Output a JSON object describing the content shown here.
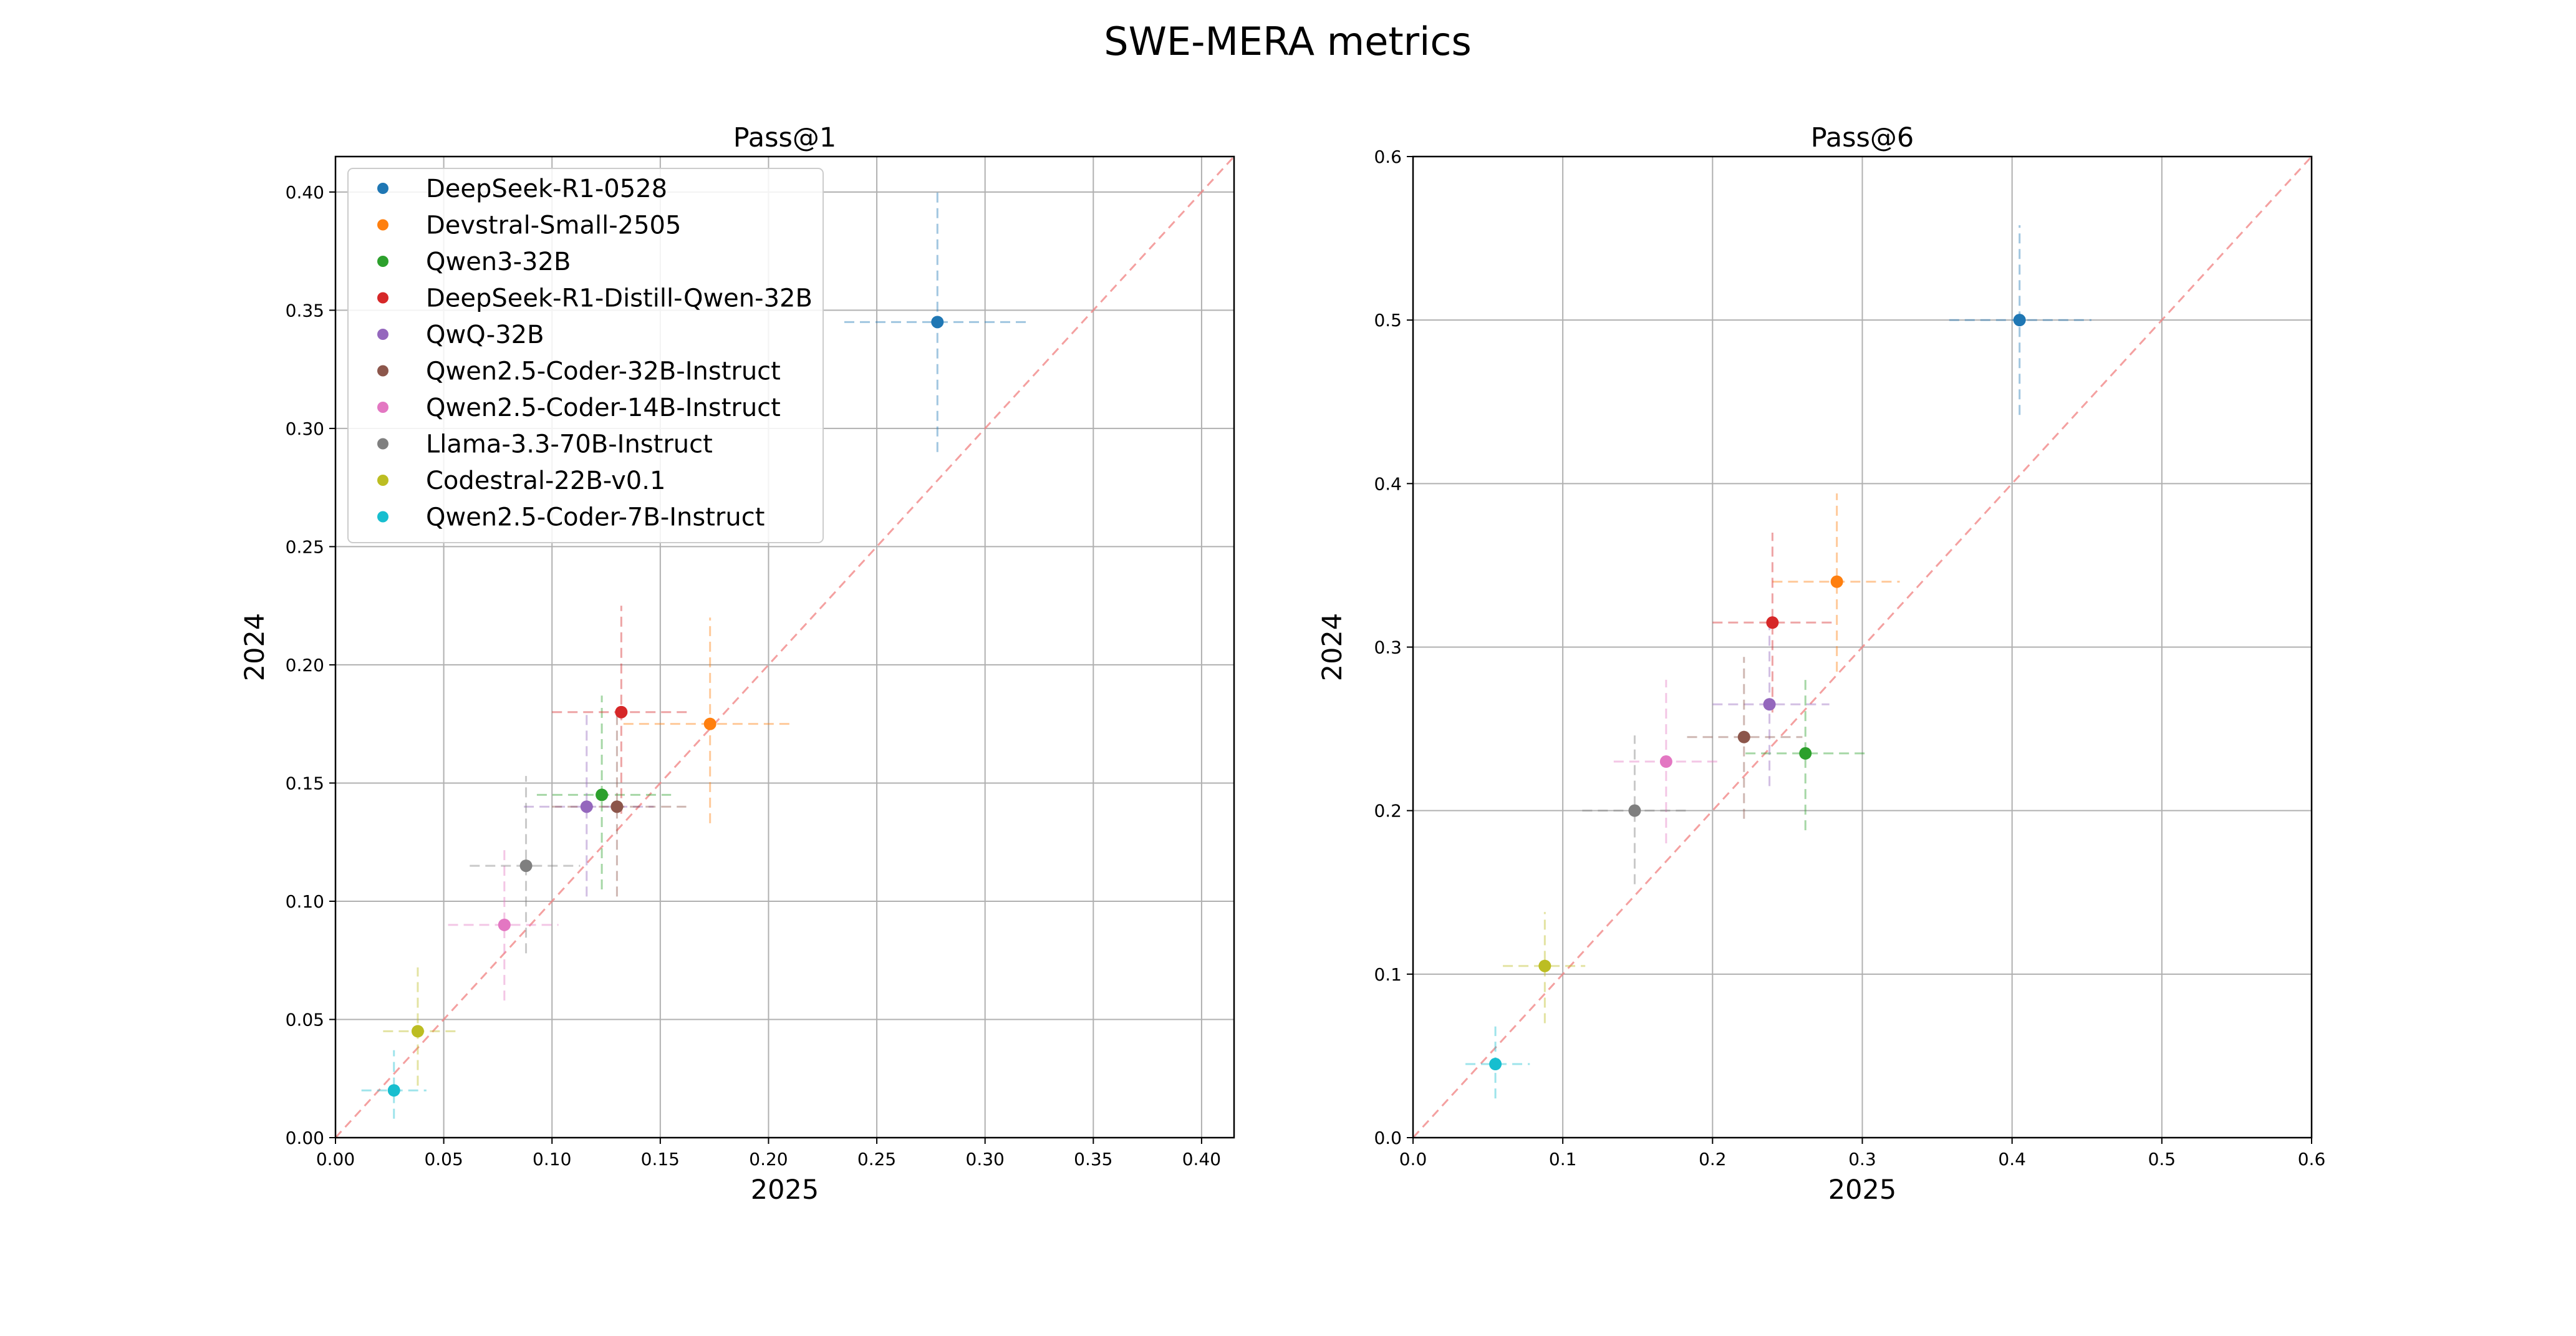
{
  "figure": {
    "title": "SWE-MERA metrics"
  },
  "legend": {
    "placement": "upper-left",
    "entries": [
      {
        "name": "DeepSeek-R1-0528",
        "color": "#1f77b4"
      },
      {
        "name": "Devstral-Small-2505",
        "color": "#ff7f0e"
      },
      {
        "name": "Qwen3-32B",
        "color": "#2ca02c"
      },
      {
        "name": "DeepSeek-R1-Distill-Qwen-32B",
        "color": "#d62728"
      },
      {
        "name": "QwQ-32B",
        "color": "#9467bd"
      },
      {
        "name": "Qwen2.5-Coder-32B-Instruct",
        "color": "#8c564b"
      },
      {
        "name": "Qwen2.5-Coder-14B-Instruct",
        "color": "#e377c2"
      },
      {
        "name": "Llama-3.3-70B-Instruct",
        "color": "#7f7f7f"
      },
      {
        "name": "Codestral-22B-v0.1",
        "color": "#bcbd22"
      },
      {
        "name": "Qwen2.5-Coder-7B-Instruct",
        "color": "#17becf"
      }
    ]
  },
  "chart_data": [
    {
      "type": "scatter",
      "title": "Pass@1",
      "xlabel": "2025",
      "ylabel": "2024",
      "xlim": [
        0,
        0.415
      ],
      "ylim": [
        0,
        0.415
      ],
      "xticks": [
        0,
        0.05,
        0.1,
        0.15,
        0.2,
        0.25,
        0.3,
        0.35,
        0.4
      ],
      "yticks": [
        0,
        0.05,
        0.1,
        0.15,
        0.2,
        0.25,
        0.3,
        0.35,
        0.4
      ],
      "xtick_labels": [
        "0.00",
        "0.05",
        "0.10",
        "0.15",
        "0.20",
        "0.25",
        "0.30",
        "0.35",
        "0.40"
      ],
      "ytick_labels": [
        "0.00",
        "0.05",
        "0.10",
        "0.15",
        "0.20",
        "0.25",
        "0.30",
        "0.35",
        "0.40"
      ],
      "grid": true,
      "diagonal": true,
      "diagonal_color": "#f08080",
      "error_bars": "dashed",
      "points": [
        {
          "x": 0.278,
          "y": 0.345,
          "x_err": [
            0.235,
            0.32
          ],
          "y_err": [
            0.29,
            0.4
          ]
        },
        {
          "x": 0.173,
          "y": 0.175,
          "x_err": [
            0.133,
            0.21
          ],
          "y_err": [
            0.133,
            0.22
          ]
        },
        {
          "x": 0.123,
          "y": 0.145,
          "x_err": [
            0.093,
            0.155
          ],
          "y_err": [
            0.105,
            0.187
          ]
        },
        {
          "x": 0.132,
          "y": 0.18,
          "x_err": [
            0.1,
            0.163
          ],
          "y_err": [
            0.137,
            0.225
          ]
        },
        {
          "x": 0.116,
          "y": 0.14,
          "x_err": [
            0.087,
            0.147
          ],
          "y_err": [
            0.102,
            0.18
          ]
        },
        {
          "x": 0.13,
          "y": 0.14,
          "x_err": [
            0.1,
            0.162
          ],
          "y_err": [
            0.102,
            0.18
          ]
        },
        {
          "x": 0.078,
          "y": 0.09,
          "x_err": [
            0.052,
            0.103
          ],
          "y_err": [
            0.058,
            0.122
          ]
        },
        {
          "x": 0.088,
          "y": 0.115,
          "x_err": [
            0.062,
            0.113
          ],
          "y_err": [
            0.078,
            0.153
          ]
        },
        {
          "x": 0.038,
          "y": 0.045,
          "x_err": [
            0.022,
            0.057
          ],
          "y_err": [
            0.022,
            0.072
          ]
        },
        {
          "x": 0.027,
          "y": 0.02,
          "x_err": [
            0.012,
            0.042
          ],
          "y_err": [
            0.008,
            0.037
          ]
        }
      ]
    },
    {
      "type": "scatter",
      "title": "Pass@6",
      "xlabel": "2025",
      "ylabel": "2024",
      "xlim": [
        0,
        0.6
      ],
      "ylim": [
        0,
        0.6
      ],
      "xticks": [
        0,
        0.1,
        0.2,
        0.3,
        0.4,
        0.5,
        0.6
      ],
      "yticks": [
        0,
        0.1,
        0.2,
        0.3,
        0.4,
        0.5,
        0.6
      ],
      "xtick_labels": [
        "0.0",
        "0.1",
        "0.2",
        "0.3",
        "0.4",
        "0.5",
        "0.6"
      ],
      "ytick_labels": [
        "0.0",
        "0.1",
        "0.2",
        "0.3",
        "0.4",
        "0.5",
        "0.6"
      ],
      "grid": true,
      "diagonal": true,
      "diagonal_color": "#f08080",
      "error_bars": "dashed",
      "points": [
        {
          "x": 0.405,
          "y": 0.5,
          "x_err": [
            0.358,
            0.453
          ],
          "y_err": [
            0.442,
            0.558
          ]
        },
        {
          "x": 0.283,
          "y": 0.34,
          "x_err": [
            0.24,
            0.325
          ],
          "y_err": [
            0.285,
            0.394
          ]
        },
        {
          "x": 0.262,
          "y": 0.235,
          "x_err": [
            0.222,
            0.302
          ],
          "y_err": [
            0.188,
            0.283
          ]
        },
        {
          "x": 0.24,
          "y": 0.315,
          "x_err": [
            0.2,
            0.28
          ],
          "y_err": [
            0.26,
            0.37
          ]
        },
        {
          "x": 0.238,
          "y": 0.265,
          "x_err": [
            0.2,
            0.278
          ],
          "y_err": [
            0.215,
            0.316
          ]
        },
        {
          "x": 0.221,
          "y": 0.245,
          "x_err": [
            0.183,
            0.26
          ],
          "y_err": [
            0.195,
            0.294
          ]
        },
        {
          "x": 0.169,
          "y": 0.23,
          "x_err": [
            0.134,
            0.205
          ],
          "y_err": [
            0.18,
            0.28
          ]
        },
        {
          "x": 0.148,
          "y": 0.2,
          "x_err": [
            0.113,
            0.185
          ],
          "y_err": [
            0.155,
            0.246
          ]
        },
        {
          "x": 0.088,
          "y": 0.105,
          "x_err": [
            0.06,
            0.115
          ],
          "y_err": [
            0.07,
            0.138
          ]
        },
        {
          "x": 0.055,
          "y": 0.045,
          "x_err": [
            0.035,
            0.078
          ],
          "y_err": [
            0.024,
            0.068
          ]
        }
      ]
    }
  ]
}
